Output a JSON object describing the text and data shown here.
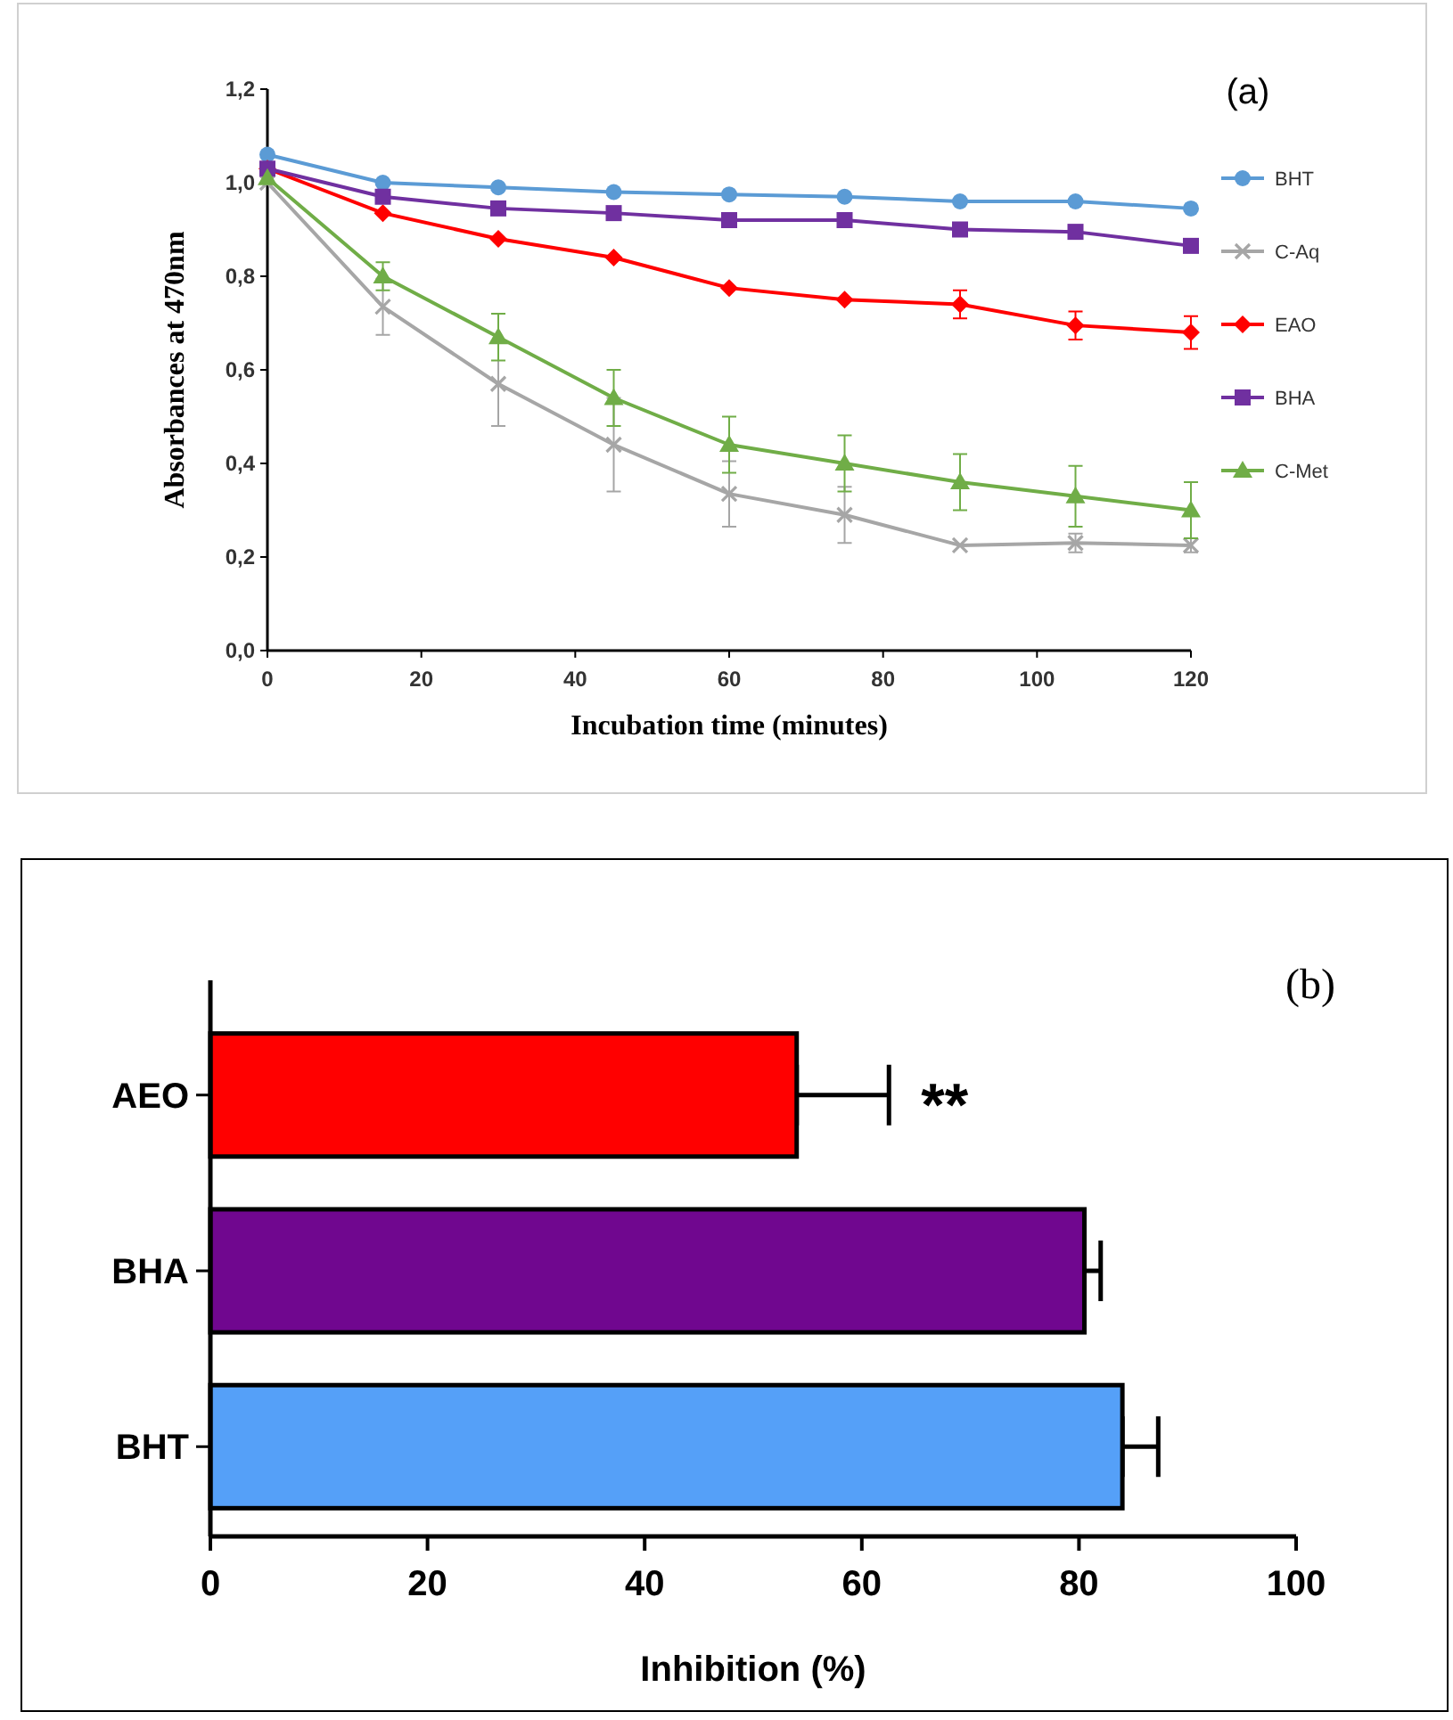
{
  "chart_data": [
    {
      "type": "line",
      "annotations": [
        "(a)"
      ],
      "xlabel": "Incubation time (minutes)",
      "ylabel": "Absorbances at 470nm",
      "x": [
        0,
        15,
        30,
        45,
        60,
        75,
        90,
        105,
        120
      ],
      "xlim": [
        0,
        120
      ],
      "xticks": [
        0,
        20,
        40,
        60,
        80,
        100,
        120
      ],
      "ylim": [
        0,
        1.2
      ],
      "yticks": [
        {
          "value": 0,
          "label": "0,0"
        },
        {
          "value": 0.2,
          "label": "0,2"
        },
        {
          "value": 0.4,
          "label": "0,4"
        },
        {
          "value": 0.6,
          "label": "0,6"
        },
        {
          "value": 0.8,
          "label": "0,8"
        },
        {
          "value": 1.0,
          "label": "1,0"
        },
        {
          "value": 1.2,
          "label": "1,2"
        }
      ],
      "grid": false,
      "legend": "right",
      "series": [
        {
          "name": "BHT",
          "color": "#5b9bd5",
          "marker": "circle",
          "values": [
            1.06,
            1.0,
            0.99,
            0.98,
            0.975,
            0.97,
            0.96,
            0.96,
            0.945
          ]
        },
        {
          "name": "C-Aq",
          "color": "#a6a6a6",
          "marker": "cross",
          "values": [
            1.0,
            0.735,
            0.57,
            0.44,
            0.335,
            0.29,
            0.225,
            0.23,
            0.225
          ],
          "errors": [
            null,
            0.06,
            0.09,
            0.1,
            0.07,
            0.06,
            null,
            0.02,
            0.015
          ]
        },
        {
          "name": "EAO",
          "color": "#ff0000",
          "marker": "diamond",
          "values": [
            1.03,
            0.935,
            0.88,
            0.84,
            0.775,
            0.75,
            0.74,
            0.695,
            0.68
          ],
          "errors": [
            null,
            null,
            null,
            null,
            null,
            null,
            0.03,
            0.03,
            0.035
          ]
        },
        {
          "name": "BHA",
          "color": "#7030a0",
          "marker": "square",
          "values": [
            1.03,
            0.97,
            0.945,
            0.935,
            0.92,
            0.92,
            0.9,
            0.895,
            0.865
          ]
        },
        {
          "name": "C-Met",
          "color": "#70ad47",
          "marker": "triangle",
          "values": [
            1.01,
            0.8,
            0.67,
            0.54,
            0.44,
            0.4,
            0.36,
            0.33,
            0.3
          ],
          "errors": [
            null,
            0.03,
            0.05,
            0.06,
            0.06,
            0.06,
            0.06,
            0.065,
            0.06
          ]
        }
      ]
    },
    {
      "type": "bar",
      "orientation": "horizontal",
      "title": "(b)",
      "xlabel": "Inhibition (%)",
      "categories": [
        "AEO",
        "BHA",
        "BHT"
      ],
      "values": [
        54,
        80.5,
        84
      ],
      "colors": [
        "#ff0000",
        "#70078f",
        "#55a0f8"
      ],
      "errors": [
        [
          54,
          62.5
        ],
        [
          80.5,
          82
        ],
        [
          84,
          87.3
        ]
      ],
      "xlim": [
        0,
        100
      ],
      "xticks": [
        0,
        20,
        40,
        60,
        80,
        100
      ],
      "annotations": [
        "**"
      ]
    }
  ]
}
